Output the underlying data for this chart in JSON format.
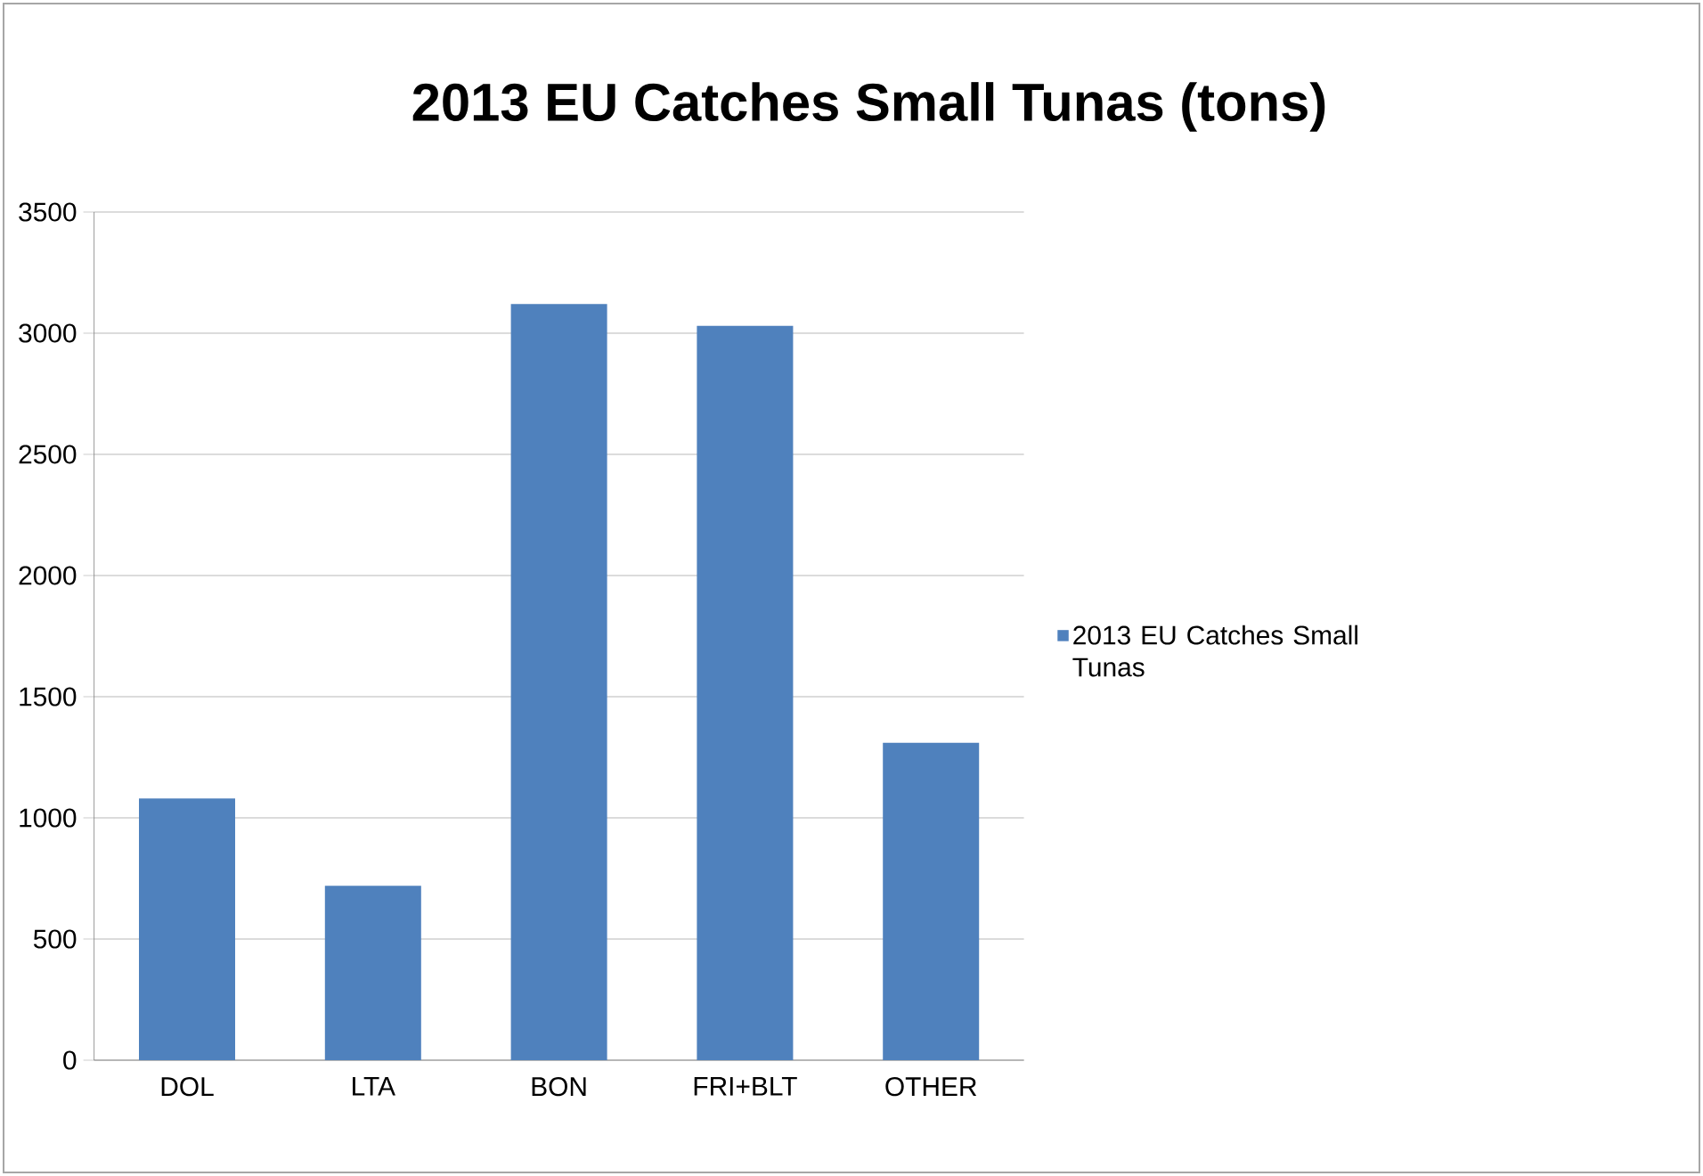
{
  "chart_data": {
    "type": "bar",
    "title": "2013 EU Catches Small Tunas (tons)",
    "categories": [
      "DOL",
      "LTA",
      "BON",
      "FRI+BLT",
      "OTHER"
    ],
    "series": [
      {
        "name": "2013 EU Catches Small Tunas",
        "color": "#4f81bd",
        "values": [
          1080,
          720,
          3120,
          3030,
          1310
        ]
      }
    ],
    "ylim": [
      0,
      3500
    ],
    "yticks": [
      0,
      500,
      1000,
      1500,
      2000,
      2500,
      3000,
      3500
    ],
    "grid": "y",
    "legend": "right"
  }
}
